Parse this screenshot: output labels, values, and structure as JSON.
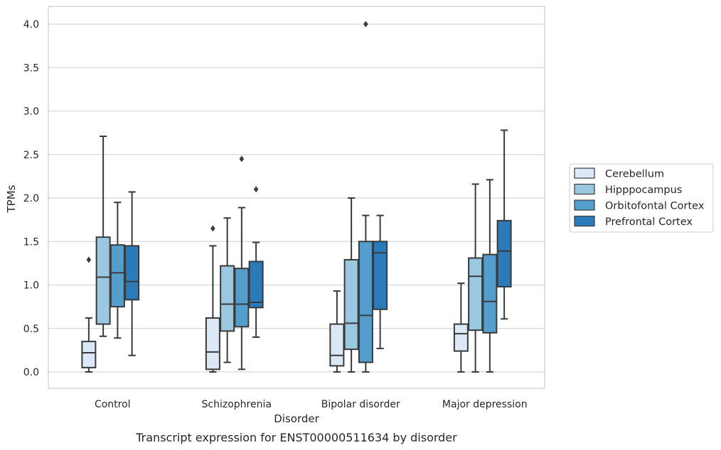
{
  "chart_data": {
    "type": "box",
    "title": "",
    "caption": "Transcript expression for ENST00000511634 by disorder",
    "xlabel": "Disorder",
    "ylabel": "TPMs",
    "ylim": [
      -0.19,
      4.2
    ],
    "yticks": [
      "0.0",
      "0.5",
      "1.0",
      "1.5",
      "2.0",
      "2.5",
      "3.0",
      "3.5",
      "4.0"
    ],
    "grid": "horizontal",
    "legend_position": "right",
    "categories": [
      "Control",
      "Schizophrenia",
      "Bipolar disorder",
      "Major depression"
    ],
    "series": [
      {
        "name": "Cerebellum",
        "color": "#dbe9f6",
        "boxes": [
          {
            "whisker_low": 0.0,
            "q1": 0.05,
            "median": 0.22,
            "q3": 0.35,
            "whisker_high": 0.62,
            "outliers": [
              1.29
            ]
          },
          {
            "whisker_low": 0.0,
            "q1": 0.03,
            "median": 0.23,
            "q3": 0.62,
            "whisker_high": 1.45,
            "outliers": [
              1.65
            ]
          },
          {
            "whisker_low": 0.0,
            "q1": 0.07,
            "median": 0.19,
            "q3": 0.55,
            "whisker_high": 0.93,
            "outliers": []
          },
          {
            "whisker_low": 0.0,
            "q1": 0.24,
            "median": 0.44,
            "q3": 0.55,
            "whisker_high": 1.02,
            "outliers": []
          }
        ]
      },
      {
        "name": "Hipppocampus",
        "color": "#9ac8e0",
        "boxes": [
          {
            "whisker_low": 0.41,
            "q1": 0.55,
            "median": 1.09,
            "q3": 1.55,
            "whisker_high": 2.71,
            "outliers": []
          },
          {
            "whisker_low": 0.11,
            "q1": 0.47,
            "median": 0.78,
            "q3": 1.22,
            "whisker_high": 1.77,
            "outliers": []
          },
          {
            "whisker_low": 0.0,
            "q1": 0.26,
            "median": 0.56,
            "q3": 1.29,
            "whisker_high": 2.0,
            "outliers": []
          },
          {
            "whisker_low": 0.0,
            "q1": 0.48,
            "median": 1.1,
            "q3": 1.31,
            "whisker_high": 2.16,
            "outliers": []
          }
        ]
      },
      {
        "name": "Orbitofontal Cortex",
        "color": "#539ecd",
        "boxes": [
          {
            "whisker_low": 0.39,
            "q1": 0.75,
            "median": 1.14,
            "q3": 1.46,
            "whisker_high": 1.95,
            "outliers": []
          },
          {
            "whisker_low": 0.03,
            "q1": 0.52,
            "median": 0.78,
            "q3": 1.19,
            "whisker_high": 1.89,
            "outliers": [
              2.45
            ]
          },
          {
            "whisker_low": 0.0,
            "q1": 0.11,
            "median": 0.65,
            "q3": 1.5,
            "whisker_high": 1.8,
            "outliers": [
              4.0
            ]
          },
          {
            "whisker_low": 0.0,
            "q1": 0.45,
            "median": 0.81,
            "q3": 1.35,
            "whisker_high": 2.21,
            "outliers": []
          }
        ]
      },
      {
        "name": "Prefrontal Cortex",
        "color": "#2b7bba",
        "boxes": [
          {
            "whisker_low": 0.19,
            "q1": 0.83,
            "median": 1.04,
            "q3": 1.45,
            "whisker_high": 2.07,
            "outliers": []
          },
          {
            "whisker_low": 0.4,
            "q1": 0.74,
            "median": 0.8,
            "q3": 1.27,
            "whisker_high": 1.49,
            "outliers": [
              2.1
            ]
          },
          {
            "whisker_low": 0.27,
            "q1": 0.72,
            "median": 1.37,
            "q3": 1.5,
            "whisker_high": 1.8,
            "outliers": []
          },
          {
            "whisker_low": 0.61,
            "q1": 0.98,
            "median": 1.39,
            "q3": 1.74,
            "whisker_high": 2.78,
            "outliers": []
          }
        ]
      }
    ]
  }
}
